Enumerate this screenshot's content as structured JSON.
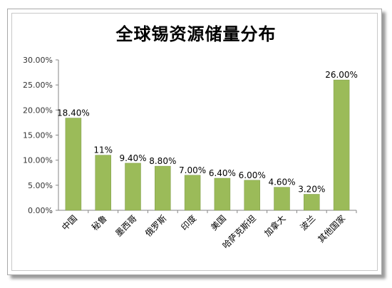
{
  "chart_data": {
    "type": "bar",
    "title": "全球锡资源储量分布",
    "categories": [
      "中国",
      "秘鲁",
      "墨西哥",
      "俄罗斯",
      "印度",
      "美国",
      "哈萨克斯坦",
      "加拿大",
      "波兰",
      "其他国家"
    ],
    "values": [
      18.4,
      11,
      9.4,
      8.8,
      7.0,
      6.4,
      6.0,
      4.6,
      3.2,
      26.0
    ],
    "data_labels": [
      "18.40%",
      "11%",
      "9.40%",
      "8.80%",
      "7.00%",
      "6.40%",
      "6.00%",
      "4.60%",
      "3.20%",
      "26.00%"
    ],
    "y_ticks": [
      "0.00%",
      "5.00%",
      "10.00%",
      "15.00%",
      "20.00%",
      "25.00%",
      "30.00%"
    ],
    "ylim": [
      0,
      30
    ],
    "grid": false,
    "legend": "none",
    "bar_color": "#9bbb59",
    "bar_border_color": "#7f9a48"
  }
}
